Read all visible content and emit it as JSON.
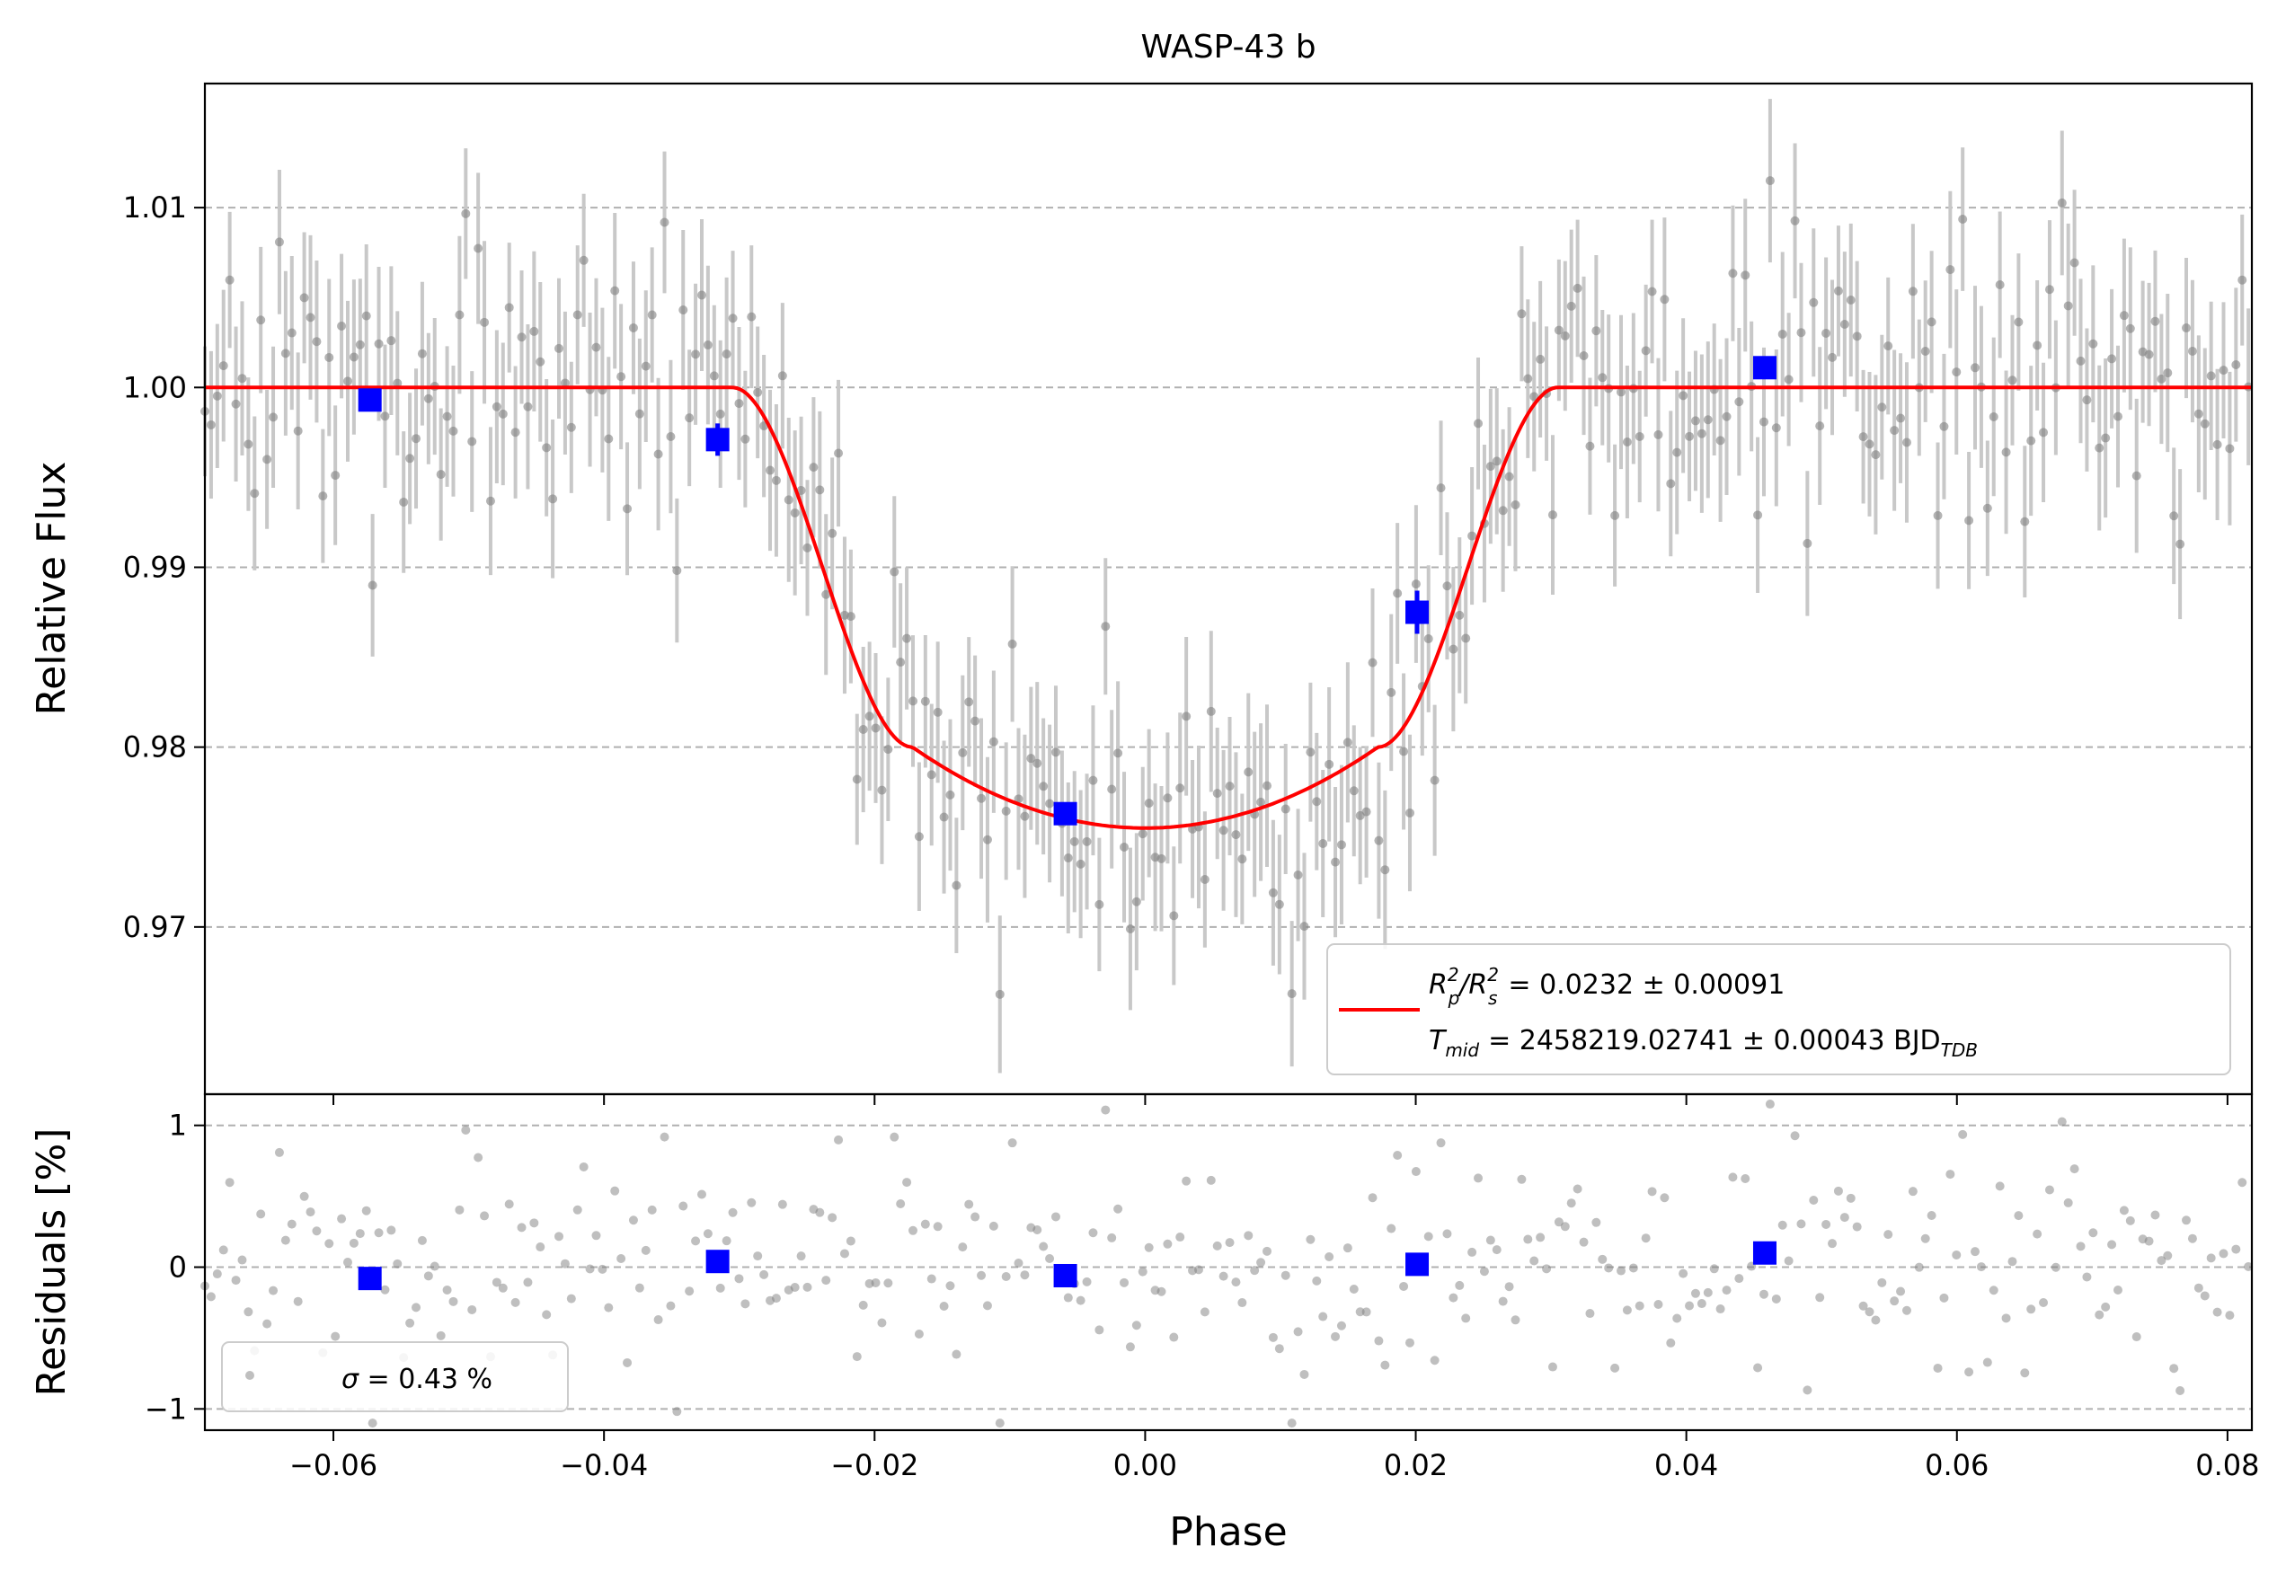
{
  "chart_data": {
    "type": "scatter",
    "title": "WASP-43 b",
    "xlabel": "Phase",
    "x_ticks": [
      -0.06,
      -0.04,
      -0.02,
      0.0,
      0.02,
      0.04,
      0.06,
      0.08
    ],
    "x_tick_labels": [
      "−0.06",
      "−0.04",
      "−0.02",
      "0.00",
      "0.02",
      "0.04",
      "0.06",
      "0.08"
    ],
    "xlim": [
      -0.0695,
      0.0818
    ],
    "panels": {
      "flux": {
        "ylabel": "Relative Flux",
        "ylim": [
          0.9607,
          1.0169
        ],
        "y_ticks": [
          0.97,
          0.98,
          0.99,
          1.0,
          1.01
        ],
        "y_tick_labels": [
          "0.97",
          "0.98",
          "0.99",
          "1.00",
          "1.01"
        ],
        "grid": "horizontal-dashed",
        "binned": [
          {
            "x": -0.0573,
            "y": 0.9993,
            "err": 0.0005
          },
          {
            "x": -0.0316,
            "y": 0.9971,
            "err": 0.0009
          },
          {
            "x": -0.0059,
            "y": 0.9763,
            "err": 0.0006
          },
          {
            "x": 0.0201,
            "y": 0.9875,
            "err": 0.0012
          },
          {
            "x": 0.0458,
            "y": 1.0011,
            "err": 0.0005
          }
        ],
        "model": {
          "depth": 0.0245,
          "t14_half": 0.0305,
          "t23_half": 0.0172,
          "curvature": 0.0045
        },
        "legend": {
          "placement": "lower-right",
          "label_line1": "R",
          "label_line1_p": "p",
          "label_line1_s": "s",
          "label_line1_sup": "2",
          "label_line1_value": "= 0.0232 ± 0.00091",
          "label_line2": "T",
          "label_line2_sub": "mid",
          "label_line2_value": "= 2458219.02741 ± 0.00043 BJD",
          "label_line2_tdb": "TDB"
        }
      },
      "residuals": {
        "ylabel": "Residuals [%]",
        "ylim": [
          -1.15,
          1.22
        ],
        "y_ticks": [
          -1,
          0,
          1
        ],
        "y_tick_labels": [
          "−1",
          "0",
          "1"
        ],
        "grid": "horizontal-dashed",
        "binned": [
          {
            "x": -0.0573,
            "y": -0.08
          },
          {
            "x": -0.0316,
            "y": 0.04
          },
          {
            "x": -0.0059,
            "y": -0.06
          },
          {
            "x": 0.0201,
            "y": 0.02
          },
          {
            "x": 0.0458,
            "y": 0.1
          }
        ],
        "legend": {
          "placement": "lower-left",
          "sigma_symbol": "σ",
          "label": " = 0.43 %"
        }
      }
    },
    "unbinned": {
      "n_points": 330,
      "x_start": -0.0695,
      "x_step": 0.0004591,
      "scatter_pct": 0.43,
      "seed": 20180402
    },
    "colors": {
      "model": "#ff0000",
      "binned": "#0000ff",
      "points": "#808080",
      "errorbars": "#c8c8c8",
      "grid": "#b0b0b0"
    }
  }
}
